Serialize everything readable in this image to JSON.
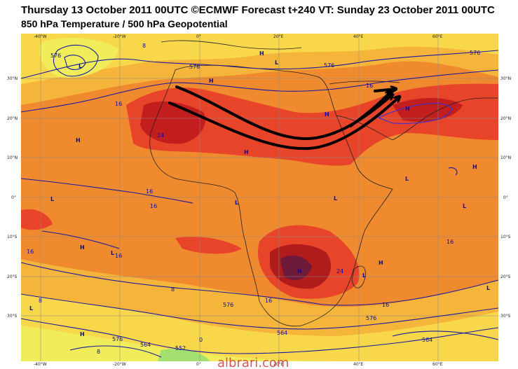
{
  "title": {
    "line1": "Thursday 13 October 2011 00UTC ©ECMWF Forecast t+240 VT: Sunday 23 October 2011 00UTC",
    "line2": "850 hPa Temperature / 500 hPa Geopotential"
  },
  "map": {
    "lon_ticks": [
      "-40°W",
      "-20°W",
      "0°",
      "20°E",
      "40°E",
      "60°E"
    ],
    "lat_ticks": [
      "30°N",
      "20°N",
      "10°N",
      "0°",
      "10°S",
      "20°S",
      "30°S"
    ],
    "contour_labels": [
      "576",
      "576",
      "576",
      "576",
      "16",
      "16",
      "16",
      "16",
      "16",
      "16",
      "16",
      "16",
      "16",
      "24",
      "24",
      "8",
      "8",
      "8",
      "8",
      "576",
      "576",
      "576",
      "564",
      "564",
      "564",
      "552",
      "0"
    ],
    "pressure_labels": [
      "L",
      "H",
      "H",
      "L",
      "H",
      "H",
      "L",
      "L",
      "H",
      "L",
      "H",
      "H",
      "L",
      "H",
      "H",
      "L",
      "H",
      "L",
      "L",
      "H",
      "L",
      "L"
    ],
    "arrow_color": "#000000",
    "contour_color": "#0a0aa8"
  },
  "watermark": "albrari.com"
}
